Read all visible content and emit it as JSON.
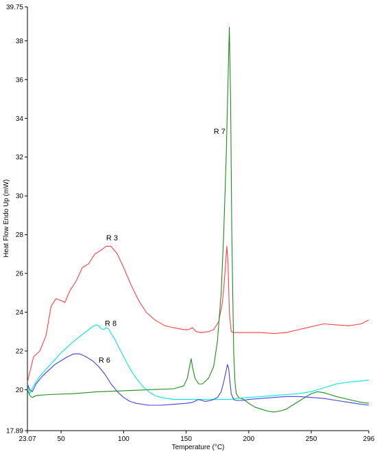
{
  "chart_data": {
    "type": "line",
    "title": "",
    "xlabel": "Temperature (°C)",
    "ylabel": "Heat Flow Endo Up (mW)",
    "xlim": [
      23.07,
      296
    ],
    "ylim": [
      17.89,
      39.75
    ],
    "x_ticks": [
      23.07,
      50,
      100,
      150,
      200,
      250,
      296
    ],
    "x_tick_labels": [
      "23.07",
      "50",
      "100",
      "150",
      "200",
      "250",
      "296"
    ],
    "y_ticks": [
      17.89,
      20,
      22,
      24,
      26,
      28,
      30,
      32,
      34,
      36,
      38,
      39.75
    ],
    "y_tick_labels": [
      "17.89",
      "20",
      "22",
      "24",
      "26",
      "28",
      "30",
      "32",
      "34",
      "36",
      "38",
      "39.75"
    ],
    "grid": false,
    "legend": "none",
    "series": [
      {
        "name": "R 3",
        "color": "#ff4040",
        "label_at": [
          86,
          27.7
        ],
        "x": [
          23.07,
          25,
          28,
          33,
          38,
          42,
          46,
          50,
          53,
          57,
          62,
          67,
          72,
          77,
          82,
          86,
          90,
          95,
          100,
          106,
          112,
          118,
          125,
          133,
          140,
          148,
          152,
          155,
          158,
          162,
          168,
          172,
          176,
          179,
          181,
          182.5,
          183.5,
          184.5,
          186,
          188,
          192,
          200,
          210,
          220,
          230,
          240,
          250,
          260,
          270,
          280,
          290,
          296
        ],
        "y": [
          20.4,
          20.9,
          21.7,
          22.0,
          22.8,
          24.3,
          24.7,
          24.6,
          24.5,
          25.1,
          25.6,
          26.3,
          26.5,
          27.0,
          27.2,
          27.4,
          27.4,
          27.0,
          26.3,
          25.4,
          24.6,
          24.0,
          23.6,
          23.3,
          23.2,
          23.1,
          23.1,
          23.2,
          23.0,
          22.95,
          23.0,
          23.1,
          23.5,
          24.5,
          26.0,
          27.4,
          26.5,
          24.0,
          23.0,
          22.95,
          22.95,
          22.95,
          22.95,
          22.9,
          22.95,
          23.1,
          23.25,
          23.4,
          23.35,
          23.3,
          23.4,
          23.6
        ]
      },
      {
        "name": "R 7",
        "color": "#1c8c1c",
        "label_at": [
          172,
          33.2
        ],
        "x": [
          23.07,
          25,
          27,
          30,
          40,
          60,
          80,
          100,
          120,
          140,
          148,
          151,
          153,
          154,
          155,
          157,
          160,
          163,
          168,
          172,
          175,
          178,
          180,
          182,
          183.5,
          184.5,
          185.5,
          186.5,
          188,
          189,
          190,
          192,
          196,
          200,
          205,
          210,
          215,
          220,
          225,
          230,
          235,
          240,
          245,
          250,
          255,
          260,
          265,
          270,
          280,
          290,
          296
        ],
        "y": [
          20.0,
          19.7,
          19.6,
          19.7,
          19.75,
          19.8,
          19.9,
          19.95,
          20.0,
          20.05,
          20.2,
          20.6,
          21.3,
          21.6,
          21.2,
          20.6,
          20.3,
          20.3,
          20.6,
          21.2,
          22.5,
          25.0,
          28.0,
          32.0,
          36.0,
          38.7,
          35.0,
          28.0,
          22.0,
          20.4,
          19.8,
          19.6,
          19.5,
          19.3,
          19.1,
          19.0,
          18.9,
          18.85,
          18.9,
          19.0,
          19.2,
          19.4,
          19.6,
          19.8,
          19.9,
          19.85,
          19.75,
          19.65,
          19.5,
          19.35,
          19.3
        ]
      },
      {
        "name": "R 8",
        "color": "#00e5e5",
        "label_at": [
          85,
          23.3
        ],
        "x": [
          23.07,
          25,
          28,
          33,
          40,
          50,
          60,
          70,
          75,
          78,
          80,
          82,
          84,
          86,
          88,
          90,
          93,
          96,
          100,
          105,
          110,
          115,
          120,
          125,
          130,
          140,
          150,
          160,
          170,
          180,
          185,
          190,
          200,
          210,
          220,
          230,
          240,
          250,
          260,
          270,
          280,
          290,
          296
        ],
        "y": [
          20.3,
          19.8,
          20.2,
          20.7,
          21.2,
          21.9,
          22.5,
          23.0,
          23.25,
          23.35,
          23.3,
          23.15,
          23.1,
          23.2,
          23.15,
          22.9,
          22.6,
          22.2,
          21.7,
          21.1,
          20.6,
          20.2,
          19.9,
          19.7,
          19.6,
          19.5,
          19.5,
          19.5,
          19.5,
          19.5,
          19.5,
          19.55,
          19.6,
          19.65,
          19.7,
          19.75,
          19.8,
          19.9,
          20.1,
          20.3,
          20.4,
          20.45,
          20.5
        ]
      },
      {
        "name": "R 6",
        "color": "#4040e0",
        "label_at": [
          80,
          21.4
        ],
        "x": [
          23.07,
          25,
          27,
          30,
          35,
          40,
          45,
          50,
          55,
          60,
          65,
          70,
          75,
          80,
          85,
          90,
          95,
          100,
          105,
          110,
          120,
          130,
          140,
          150,
          155,
          160,
          165,
          170,
          175,
          178,
          180,
          182,
          183,
          184,
          185,
          186,
          188,
          190,
          195,
          200,
          210,
          220,
          230,
          240,
          250,
          260,
          270,
          280,
          290,
          296
        ],
        "y": [
          20.3,
          20.0,
          19.9,
          20.3,
          20.7,
          21.0,
          21.3,
          21.5,
          21.7,
          21.85,
          21.85,
          21.7,
          21.5,
          21.2,
          20.8,
          20.3,
          19.9,
          19.6,
          19.4,
          19.3,
          19.2,
          19.2,
          19.25,
          19.3,
          19.35,
          19.5,
          19.4,
          19.45,
          19.6,
          19.9,
          20.4,
          21.0,
          21.3,
          21.1,
          20.4,
          19.8,
          19.5,
          19.45,
          19.45,
          19.5,
          19.55,
          19.6,
          19.65,
          19.65,
          19.6,
          19.55,
          19.45,
          19.35,
          19.25,
          19.2
        ]
      }
    ]
  }
}
